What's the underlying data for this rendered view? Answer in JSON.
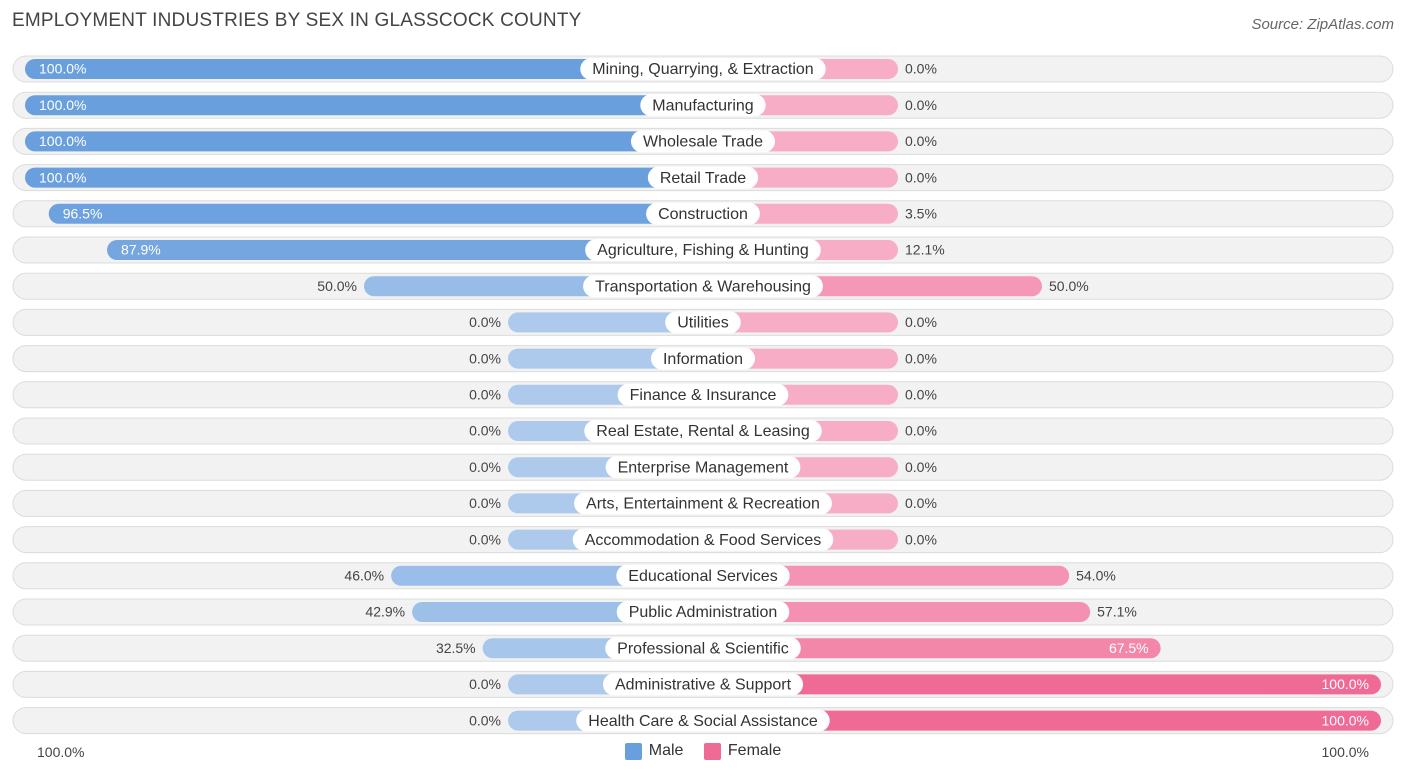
{
  "title": "EMPLOYMENT INDUSTRIES BY SEX IN GLASSCOCK COUNTY",
  "source": "Source: ZipAtlas.com",
  "legend": {
    "male": "Male",
    "female": "Female"
  },
  "axis": {
    "left": "100.0%",
    "right": "100.0%"
  },
  "colors": {
    "male": "#6a9fde",
    "male_light": "#aecbee",
    "female": "#f06a96",
    "female_light": "#f5a8c2",
    "row_bg": "#f2f2f2"
  },
  "chart_data": {
    "type": "bar",
    "orientation": "horizontal-diverging",
    "categories": [
      "Mining, Quarrying, & Extraction",
      "Manufacturing",
      "Wholesale Trade",
      "Retail Trade",
      "Construction",
      "Agriculture, Fishing & Hunting",
      "Transportation & Warehousing",
      "Utilities",
      "Information",
      "Finance & Insurance",
      "Real Estate, Rental & Leasing",
      "Enterprise Management",
      "Arts, Entertainment & Recreation",
      "Accommodation & Food Services",
      "Educational Services",
      "Public Administration",
      "Professional & Scientific",
      "Administrative & Support",
      "Health Care & Social Assistance"
    ],
    "series": [
      {
        "name": "Male",
        "values": [
          100.0,
          100.0,
          100.0,
          100.0,
          96.5,
          87.9,
          50.0,
          0.0,
          0.0,
          0.0,
          0.0,
          0.0,
          0.0,
          0.0,
          46.0,
          42.9,
          32.5,
          0.0,
          0.0
        ],
        "labels": [
          "100.0%",
          "100.0%",
          "100.0%",
          "100.0%",
          "96.5%",
          "87.9%",
          "50.0%",
          "0.0%",
          "0.0%",
          "0.0%",
          "0.0%",
          "0.0%",
          "0.0%",
          "0.0%",
          "46.0%",
          "42.9%",
          "32.5%",
          "0.0%",
          "0.0%"
        ]
      },
      {
        "name": "Female",
        "values": [
          0.0,
          0.0,
          0.0,
          0.0,
          3.5,
          12.1,
          50.0,
          0.0,
          0.0,
          0.0,
          0.0,
          0.0,
          0.0,
          0.0,
          54.0,
          57.1,
          67.5,
          100.0,
          100.0
        ],
        "labels": [
          "0.0%",
          "0.0%",
          "0.0%",
          "0.0%",
          "3.5%",
          "12.1%",
          "50.0%",
          "0.0%",
          "0.0%",
          "0.0%",
          "0.0%",
          "0.0%",
          "0.0%",
          "0.0%",
          "54.0%",
          "57.1%",
          "67.5%",
          "100.0%",
          "100.0%"
        ]
      }
    ],
    "xlim": [
      0,
      100
    ],
    "grid": false,
    "legend_position": "bottom-center"
  }
}
